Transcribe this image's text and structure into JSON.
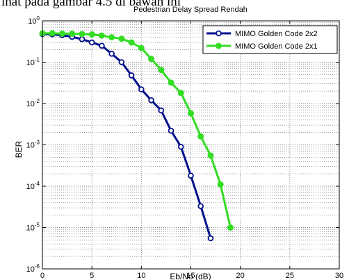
{
  "caption": "ihat pada gambar 4.5 di bawah ini",
  "chart_data": {
    "type": "line",
    "title": "Pedestrian Delay Spread Rendah",
    "xlabel": "Eb/No (dB)",
    "ylabel": "BER",
    "xlim": [
      0,
      30
    ],
    "ylim": [
      1e-06,
      1
    ],
    "y_scale": "log",
    "x_ticks": [
      "0",
      "5",
      "10",
      "15",
      "20",
      "25",
      "30"
    ],
    "y_ticks": [
      {
        "base": "10",
        "exp": "0"
      },
      {
        "base": "10",
        "exp": "-1"
      },
      {
        "base": "10",
        "exp": "-2"
      },
      {
        "base": "10",
        "exp": "-3"
      },
      {
        "base": "10",
        "exp": "-4"
      },
      {
        "base": "10",
        "exp": "-5"
      },
      {
        "base": "10",
        "exp": "-6"
      }
    ],
    "grid": true,
    "legend_position": "top-right",
    "series": [
      {
        "name": "MIMO Golden Code 2x2",
        "color": "#00108c",
        "marker": "circle-open",
        "x": [
          0,
          1,
          2,
          3,
          4,
          5,
          6,
          7,
          8,
          9,
          10,
          11,
          12,
          13,
          14,
          15,
          16,
          17
        ],
        "y": [
          0.48,
          0.47,
          0.45,
          0.41,
          0.36,
          0.3,
          0.25,
          0.16,
          0.1,
          0.048,
          0.022,
          0.012,
          0.0068,
          0.0022,
          0.0009,
          0.00018,
          3.3e-05,
          5.5e-06
        ]
      },
      {
        "name": "MIMO Golden Code 2x1",
        "color": "#33dd22",
        "marker": "circle-filled",
        "x": [
          0,
          1,
          2,
          3,
          4,
          5,
          6,
          7,
          8,
          9,
          10,
          11,
          12,
          13,
          14,
          15,
          16,
          17,
          18,
          19
        ],
        "y": [
          0.5,
          0.5,
          0.49,
          0.49,
          0.48,
          0.47,
          0.44,
          0.4,
          0.37,
          0.3,
          0.22,
          0.12,
          0.065,
          0.032,
          0.018,
          0.0058,
          0.0016,
          0.00055,
          0.00011,
          1e-05
        ]
      }
    ]
  }
}
